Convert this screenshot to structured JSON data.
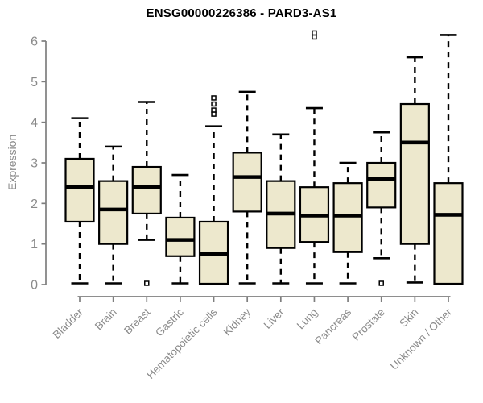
{
  "chart_data": {
    "type": "box",
    "title": "ENSG00000226386 - PARD3-AS1",
    "xlabel": "",
    "ylabel": "Expression",
    "ylim": [
      0,
      6.25
    ],
    "yticks": [
      0,
      1,
      2,
      3,
      4,
      5,
      6
    ],
    "grid": false,
    "legend": "none",
    "colors": {
      "box_fill": "#EDE8CD",
      "box_stroke": "#000000",
      "median": "#000000",
      "whisker": "#000000",
      "axis": "#7e7e7e",
      "tick_label": "#8a8a8a",
      "title": "#000000",
      "background": "#ffffff"
    },
    "categories": [
      "Bladder",
      "Brain",
      "Breast",
      "Gastric",
      "Hematopoietic cells",
      "Kidney",
      "Liver",
      "Lung",
      "Pancreas",
      "Prostate",
      "Skin",
      "Unknown / Other"
    ],
    "boxes": [
      {
        "category": "Bladder",
        "whisker_low": 0.03,
        "q1": 1.55,
        "median": 2.4,
        "q3": 3.1,
        "whisker_high": 4.1,
        "outliers": []
      },
      {
        "category": "Brain",
        "whisker_low": 0.03,
        "q1": 1.0,
        "median": 1.85,
        "q3": 2.55,
        "whisker_high": 3.4,
        "outliers": []
      },
      {
        "category": "Breast",
        "whisker_low": 1.1,
        "q1": 1.75,
        "median": 2.4,
        "q3": 2.9,
        "whisker_high": 4.5,
        "outliers": [
          0.03
        ]
      },
      {
        "category": "Gastric",
        "whisker_low": 0.03,
        "q1": 0.7,
        "median": 1.1,
        "q3": 1.65,
        "whisker_high": 2.7,
        "outliers": []
      },
      {
        "category": "Hematopoietic cells",
        "whisker_low": 0.02,
        "q1": 0.02,
        "median": 0.75,
        "q3": 1.55,
        "whisker_high": 3.9,
        "outliers": [
          4.6,
          4.45,
          4.3,
          4.2
        ]
      },
      {
        "category": "Kidney",
        "whisker_low": 0.03,
        "q1": 1.8,
        "median": 2.65,
        "q3": 3.25,
        "whisker_high": 4.75,
        "outliers": []
      },
      {
        "category": "Liver",
        "whisker_low": 0.03,
        "q1": 0.9,
        "median": 1.75,
        "q3": 2.55,
        "whisker_high": 3.7,
        "outliers": []
      },
      {
        "category": "Lung",
        "whisker_low": 0.03,
        "q1": 1.05,
        "median": 1.7,
        "q3": 2.4,
        "whisker_high": 4.35,
        "outliers": [
          6.1,
          6.2
        ]
      },
      {
        "category": "Pancreas",
        "whisker_low": 0.03,
        "q1": 0.8,
        "median": 1.7,
        "q3": 2.5,
        "whisker_high": 3.0,
        "outliers": []
      },
      {
        "category": "Prostate",
        "whisker_low": 0.65,
        "q1": 1.9,
        "median": 2.6,
        "q3": 3.0,
        "whisker_high": 3.75,
        "outliers": [
          0.03
        ]
      },
      {
        "category": "Skin",
        "whisker_low": 0.05,
        "q1": 1.0,
        "median": 3.5,
        "q3": 4.45,
        "whisker_high": 5.6,
        "outliers": []
      },
      {
        "category": "Unknown / Other",
        "whisker_low": 0.02,
        "q1": 0.02,
        "median": 1.72,
        "q3": 2.5,
        "whisker_high": 6.15,
        "outliers": []
      }
    ]
  }
}
